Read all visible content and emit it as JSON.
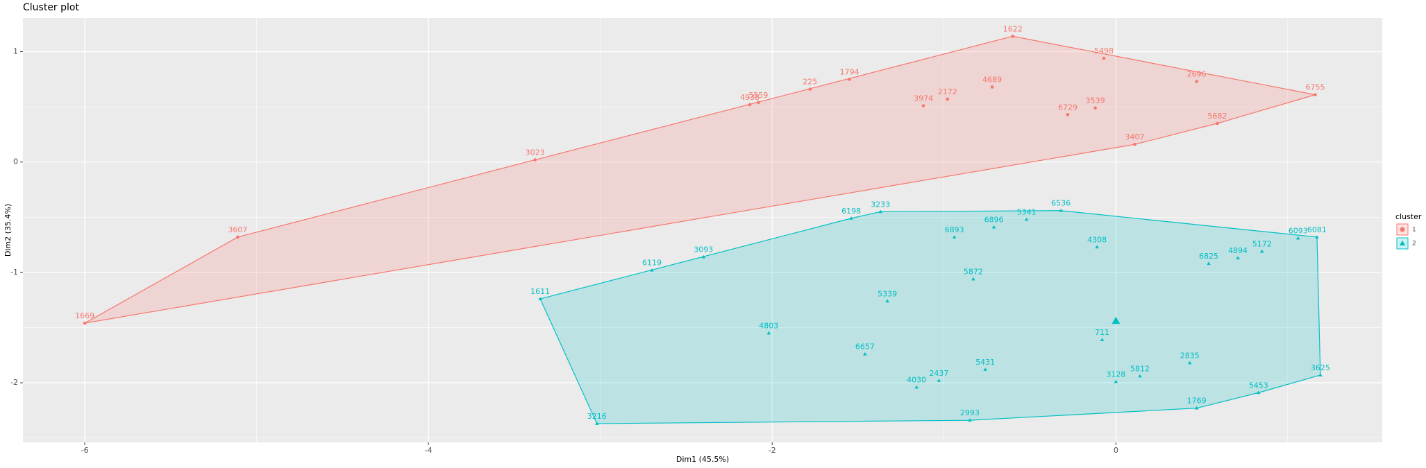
{
  "chart_data": {
    "type": "scatter",
    "title": "Cluster plot",
    "x_label": "Dim1 (45.5%)",
    "y_label": "Dim2 (35.4%)",
    "xlim": [
      -6.36,
      1.55
    ],
    "ylim": [
      -2.54,
      1.305
    ],
    "xticks": [
      -6,
      -4,
      -2,
      0
    ],
    "yticks": [
      -2,
      -1,
      0,
      1
    ],
    "grid": true,
    "legend_title": "cluster",
    "legend": "right",
    "series": [
      {
        "name": "1",
        "color": "#F8766D",
        "marker": "circle",
        "labels": [
          "1669",
          "3607",
          "3023",
          "4938",
          "5559",
          "225",
          "1794",
          "3974",
          "2172",
          "1622",
          "5498",
          "2696",
          "6729",
          "3539",
          "3407",
          "5682",
          "4689",
          "6755"
        ],
        "x": [
          -6.0,
          -5.11,
          -3.38,
          -2.13,
          -2.08,
          -1.78,
          -1.55,
          -1.12,
          -0.98,
          -0.6,
          -0.07,
          0.47,
          -0.28,
          -0.12,
          0.11,
          0.59,
          -0.72,
          1.16
        ],
        "y": [
          -1.46,
          -0.68,
          0.02,
          0.52,
          0.54,
          0.66,
          0.75,
          0.51,
          0.57,
          1.14,
          0.94,
          0.73,
          0.43,
          0.49,
          0.16,
          0.35,
          0.68,
          0.61
        ]
      },
      {
        "name": "2",
        "color": "#00BFC4",
        "marker": "triangle",
        "labels": [
          "1611",
          "3216",
          "2993",
          "1769",
          "3625",
          "6081",
          "6536",
          "3233",
          "6198",
          "6119",
          "3093",
          "6893",
          "6896",
          "5341",
          "4308",
          "5872",
          "5339",
          "4803",
          "6657",
          "711",
          "4030",
          "2437",
          "5431",
          "3128",
          "5812",
          "2835",
          "6825",
          "4894",
          "5172",
          "6093",
          "5453"
        ],
        "x": [
          -3.35,
          -3.02,
          -0.85,
          0.47,
          1.19,
          1.17,
          -0.32,
          -1.37,
          -1.54,
          -2.7,
          -2.4,
          -0.94,
          -0.71,
          -0.52,
          -0.11,
          -0.83,
          -1.33,
          -2.02,
          -1.46,
          -0.08,
          -1.16,
          -1.03,
          -0.76,
          0.0,
          0.14,
          0.43,
          0.54,
          0.71,
          0.85,
          1.06,
          0.83
        ],
        "y": [
          -1.24,
          -2.37,
          -2.34,
          -2.23,
          -1.93,
          -0.68,
          -0.44,
          -0.45,
          -0.51,
          -0.98,
          -0.86,
          -0.68,
          -0.59,
          -0.52,
          -0.77,
          -1.06,
          -1.26,
          -1.55,
          -1.74,
          -1.61,
          -2.04,
          -1.98,
          -1.88,
          -1.99,
          -1.94,
          -1.82,
          -0.92,
          -0.87,
          -0.81,
          -0.69,
          -2.09
        ],
        "center": [
          0.0,
          -1.44
        ]
      }
    ]
  }
}
